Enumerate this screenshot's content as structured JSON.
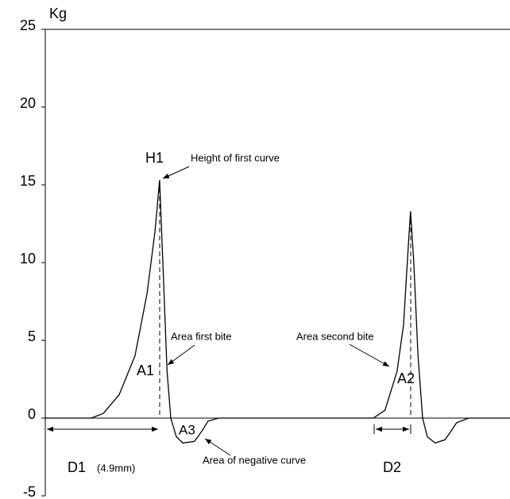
{
  "chart_data": {
    "type": "line",
    "y_label": "Kg",
    "ylim": [
      -5,
      25
    ],
    "yticks": [
      -5,
      0,
      5,
      10,
      15,
      20,
      25
    ],
    "xlim": [
      0,
      100
    ],
    "x": [
      0,
      9.9,
      12.5,
      15.9,
      19.3,
      21.9,
      23.6,
      24.6,
      25.3,
      26.2,
      27.0,
      28.2,
      29.6,
      32.1,
      33.8,
      35.0,
      37.3,
      70.6,
      73.1,
      75.7,
      77.1,
      78.1,
      78.6,
      79.3,
      80.2,
      81.2,
      82.2,
      83.9,
      86.0,
      87.4,
      88.5,
      91.1,
      100
    ],
    "series": [
      {
        "color": "#000000",
        "values": [
          0,
          0,
          0.3,
          1.5,
          4,
          8,
          12,
          15.3,
          10,
          3,
          0,
          -1.2,
          -1.6,
          -1.5,
          -0.8,
          -0.2,
          0,
          0,
          0.5,
          3,
          6,
          11,
          13.3,
          10,
          4,
          0,
          -1.2,
          -1.6,
          -1.4,
          -0.8,
          -0.3,
          0,
          0
        ]
      }
    ],
    "annotations": [
      "H1",
      "Height of first curve",
      "Area first bite",
      "A1",
      "A3",
      "Area of negative curve",
      "Area second bite",
      "A2",
      "D1",
      "(4.9mm)",
      "D2"
    ]
  }
}
